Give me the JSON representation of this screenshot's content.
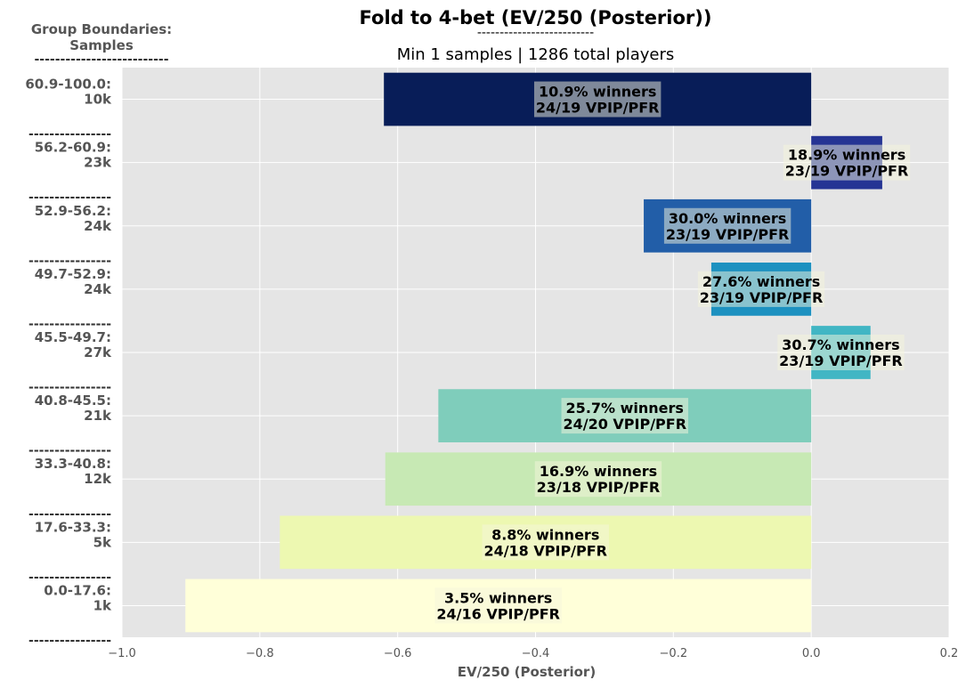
{
  "chart_data": {
    "type": "bar",
    "orientation": "horizontal",
    "title": "Fold to 4-bet (EV/250 (Posterior))",
    "title_separator": "--------------------------",
    "subtitle": "Min 1 samples | 1286 total players",
    "xlabel": "EV/250 (Posterior)",
    "xlim": [
      -1.0,
      0.2
    ],
    "xticks": [
      "−1.0",
      "−0.8",
      "−0.6",
      "−0.4",
      "−0.2",
      "0.0",
      "0.2"
    ],
    "xtick_values": [
      -1.0,
      -0.8,
      -0.6,
      -0.4,
      -0.2,
      0.0,
      0.2
    ],
    "grid": true,
    "y_axis_header": {
      "line1": "Group Boundaries:",
      "line2": "Samples",
      "separator": "--------------------------"
    },
    "group_separator": "----------------",
    "bars": [
      {
        "range": "60.9-100.0:",
        "samples": "10k",
        "value": -0.62,
        "color": "#081d58",
        "winners": "10.9% winners",
        "vpip_pfr": "24/19 VPIP/PFR"
      },
      {
        "range": "56.2-60.9:",
        "samples": "23k",
        "value": 0.103,
        "color": "#253494",
        "winners": "18.9% winners",
        "vpip_pfr": "23/19 VPIP/PFR"
      },
      {
        "range": "52.9-56.2:",
        "samples": "24k",
        "value": -0.243,
        "color": "#225ea8",
        "winners": "30.0% winners",
        "vpip_pfr": "23/19 VPIP/PFR"
      },
      {
        "range": "49.7-52.9:",
        "samples": "24k",
        "value": -0.145,
        "color": "#1d91c0",
        "winners": "27.6% winners",
        "vpip_pfr": "23/19 VPIP/PFR"
      },
      {
        "range": "45.5-49.7:",
        "samples": "27k",
        "value": 0.086,
        "color": "#41b6c4",
        "winners": "30.7% winners",
        "vpip_pfr": "23/19 VPIP/PFR"
      },
      {
        "range": "40.8-45.5:",
        "samples": "21k",
        "value": -0.541,
        "color": "#7fcdbb",
        "winners": "25.7% winners",
        "vpip_pfr": "24/20 VPIP/PFR"
      },
      {
        "range": "33.3-40.8:",
        "samples": "12k",
        "value": -0.618,
        "color": "#c7e9b4",
        "winners": "16.9% winners",
        "vpip_pfr": "23/18 VPIP/PFR"
      },
      {
        "range": "17.6-33.3:",
        "samples": "5k",
        "value": -0.771,
        "color": "#edf8b1",
        "winners": "8.8% winners",
        "vpip_pfr": "24/18 VPIP/PFR"
      },
      {
        "range": "0.0-17.6:",
        "samples": "1k",
        "value": -0.908,
        "color": "#ffffd9",
        "winners": "3.5% winners",
        "vpip_pfr": "24/16 VPIP/PFR"
      }
    ]
  }
}
